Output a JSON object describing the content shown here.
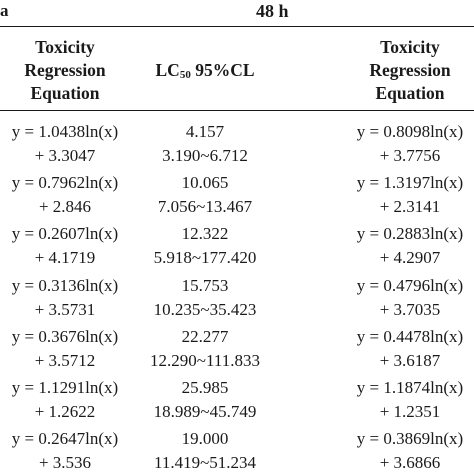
{
  "header": {
    "top_left_fragment": "a",
    "time_label": "48 h",
    "col1_line1": "Toxicity",
    "col1_line2": "Regression",
    "col1_line3": "Equation",
    "col2_prefix": "LC",
    "col2_sub": "50",
    "col2_suffix": " 95%CL",
    "col3_line1": "Toxicity",
    "col3_line2": "Regression",
    "col3_line3": "Equation"
  },
  "rows": [
    {
      "eq1_a": "y = 1.0438ln(x)",
      "eq1_b": "+ 3.3047",
      "lc50": "4.157",
      "cl": "3.190~6.712",
      "eq2_a": "y = 0.8098ln(x)",
      "eq2_b": "+ 3.7756"
    },
    {
      "eq1_a": "y = 0.7962ln(x)",
      "eq1_b": "+ 2.846",
      "lc50": "10.065",
      "cl": "7.056~13.467",
      "eq2_a": "y = 1.3197ln(x)",
      "eq2_b": "+ 2.3141"
    },
    {
      "eq1_a": "y = 0.2607ln(x)",
      "eq1_b": "+ 4.1719",
      "lc50": "12.322",
      "cl": "5.918~177.420",
      "eq2_a": "y = 0.2883ln(x)",
      "eq2_b": "+ 4.2907"
    },
    {
      "eq1_a": "y = 0.3136ln(x)",
      "eq1_b": "+ 3.5731",
      "lc50": "15.753",
      "cl": "10.235~35.423",
      "eq2_a": "y = 0.4796ln(x)",
      "eq2_b": "+ 3.7035"
    },
    {
      "eq1_a": "y = 0.3676ln(x)",
      "eq1_b": "+ 3.5712",
      "lc50": "22.277",
      "cl": "12.290~111.833",
      "eq2_a": "y = 0.4478ln(x)",
      "eq2_b": "+ 3.6187"
    },
    {
      "eq1_a": "y = 1.1291ln(x)",
      "eq1_b": "+ 1.2622",
      "lc50": "25.985",
      "cl": "18.989~45.749",
      "eq2_a": "y = 1.1874ln(x)",
      "eq2_b": "+ 1.2351"
    },
    {
      "eq1_a": "y = 0.2647ln(x)",
      "eq1_b": "+ 3.536",
      "lc50": "19.000",
      "cl": "11.419~51.234",
      "eq2_a": "y = 0.3869ln(x)",
      "eq2_b": "+ 3.6866"
    }
  ]
}
